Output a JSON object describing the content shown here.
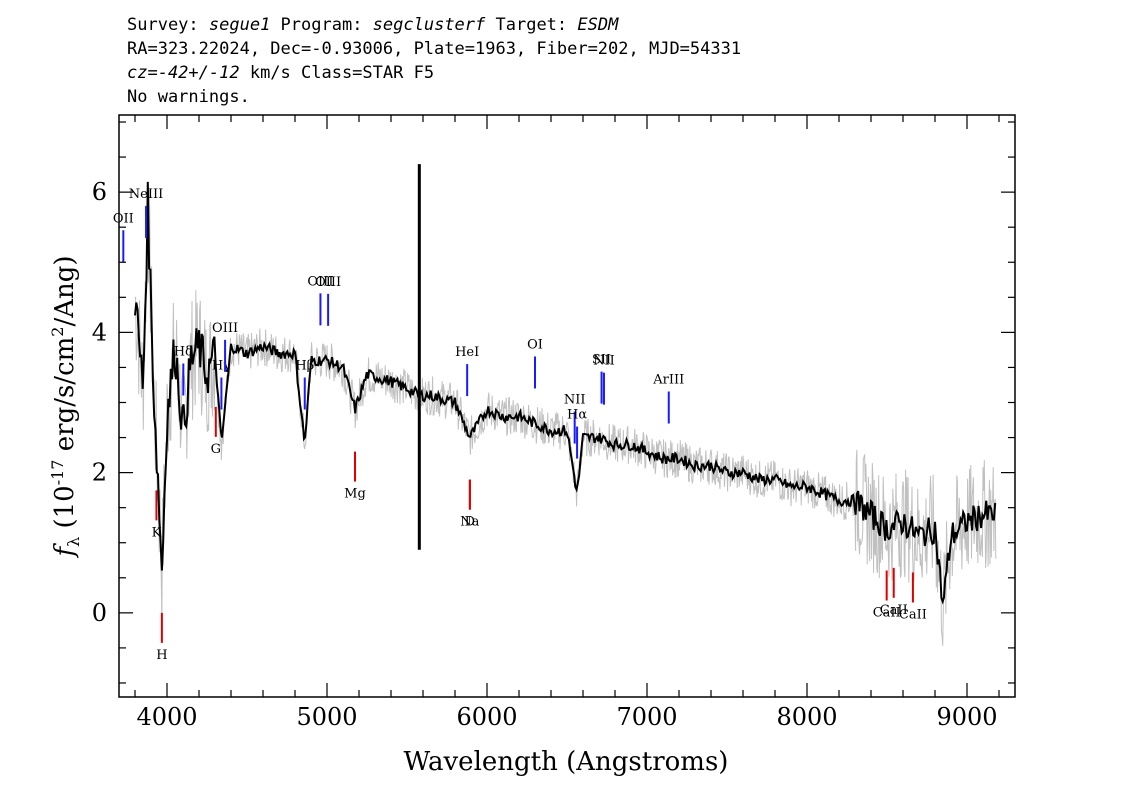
{
  "header": {
    "line1": {
      "survey_label": "Survey: ",
      "survey": "segue1",
      "program_label": " Program: ",
      "program": "segclusterf",
      "target_label": " Target: ",
      "target": "ESDM"
    },
    "line2": "RA=323.22024, Dec=-0.93006, Plate=1963, Fiber=202, MJD=54331",
    "line3": {
      "cz": "cz=-42+/-12",
      "rest": " km/s Class=STAR F5"
    },
    "line4": "No warnings."
  },
  "chart_data": {
    "type": "line",
    "xlabel": "Wavelength (Angstroms)",
    "ylabel": "f_λ (10^-17 erg/s/cm^2/Ang)",
    "xlim": [
      3700,
      9300
    ],
    "ylim": [
      -1.2,
      7.1
    ],
    "x_ticks": [
      4000,
      5000,
      6000,
      7000,
      8000,
      9000
    ],
    "y_ticks": [
      0,
      2,
      4,
      6
    ],
    "series": [
      {
        "role": "smoothed flux",
        "color": "#000000",
        "points": [
          [
            3800,
            4.5
          ],
          [
            3850,
            3.2
          ],
          [
            3880,
            5.8
          ],
          [
            3920,
            3.0
          ],
          [
            3950,
            1.6
          ],
          [
            3968,
            0.6
          ],
          [
            4000,
            2.8
          ],
          [
            4050,
            3.8
          ],
          [
            4102,
            2.6
          ],
          [
            4150,
            3.6
          ],
          [
            4200,
            3.8
          ],
          [
            4250,
            3.4
          ],
          [
            4300,
            3.7
          ],
          [
            4340,
            2.4
          ],
          [
            4400,
            3.8
          ],
          [
            4500,
            3.7
          ],
          [
            4600,
            3.8
          ],
          [
            4700,
            3.7
          ],
          [
            4800,
            3.7
          ],
          [
            4861,
            2.4
          ],
          [
            4900,
            3.6
          ],
          [
            5000,
            3.6
          ],
          [
            5100,
            3.5
          ],
          [
            5175,
            2.9
          ],
          [
            5250,
            3.4
          ],
          [
            5400,
            3.3
          ],
          [
            5500,
            3.2
          ],
          [
            5577,
            3.1
          ],
          [
            5650,
            3.1
          ],
          [
            5800,
            3.0
          ],
          [
            5893,
            2.5
          ],
          [
            6000,
            2.9
          ],
          [
            6100,
            2.8
          ],
          [
            6200,
            2.8
          ],
          [
            6300,
            2.7
          ],
          [
            6400,
            2.6
          ],
          [
            6500,
            2.6
          ],
          [
            6563,
            1.7
          ],
          [
            6600,
            2.5
          ],
          [
            6700,
            2.5
          ],
          [
            6800,
            2.4
          ],
          [
            6900,
            2.4
          ],
          [
            7000,
            2.3
          ],
          [
            7100,
            2.2
          ],
          [
            7200,
            2.2
          ],
          [
            7300,
            2.1
          ],
          [
            7400,
            2.1
          ],
          [
            7500,
            2.0
          ],
          [
            7600,
            2.0
          ],
          [
            7700,
            1.9
          ],
          [
            7800,
            1.9
          ],
          [
            7900,
            1.8
          ],
          [
            8000,
            1.8
          ],
          [
            8100,
            1.7
          ],
          [
            8200,
            1.6
          ],
          [
            8300,
            1.6
          ],
          [
            8400,
            1.4
          ],
          [
            8500,
            1.2
          ],
          [
            8600,
            1.3
          ],
          [
            8700,
            1.1
          ],
          [
            8800,
            1.2
          ],
          [
            8850,
            0.1
          ],
          [
            8900,
            1.1
          ],
          [
            9000,
            1.3
          ],
          [
            9100,
            1.4
          ],
          [
            9180,
            1.4
          ]
        ]
      },
      {
        "role": "sky line spike",
        "color": "#000000",
        "points": [
          [
            5577,
            0.9
          ],
          [
            5577,
            6.4
          ]
        ]
      }
    ],
    "emission_lines": [
      {
        "label": "OII",
        "wavelength": 3727,
        "color": "#1a1aff"
      },
      {
        "label": "NeIII",
        "wavelength": 3869,
        "color": "#1a1aff"
      },
      {
        "label": "Hδ",
        "wavelength": 4102,
        "color": "#1a1aff"
      },
      {
        "label": "Hγ",
        "wavelength": 4340,
        "color": "#1a1aff"
      },
      {
        "label": "OIII",
        "wavelength": 4363,
        "color": "#1a1aff"
      },
      {
        "label": "Hβ",
        "wavelength": 4861,
        "color": "#1a1aff"
      },
      {
        "label": "OIII",
        "wavelength": 4959,
        "color": "#1a1aff"
      },
      {
        "label": "OIII",
        "wavelength": 5007,
        "color": "#1a1aff"
      },
      {
        "label": "HeI",
        "wavelength": 5876,
        "color": "#1a1aff"
      },
      {
        "label": "OI",
        "wavelength": 6300,
        "color": "#1a1aff"
      },
      {
        "label": "NII",
        "wavelength": 6548,
        "color": "#1a1aff"
      },
      {
        "label": "Hα",
        "wavelength": 6563,
        "color": "#1a1aff"
      },
      {
        "label": "SII",
        "wavelength": 6716,
        "color": "#1a1aff"
      },
      {
        "label": "NII",
        "wavelength": 6731,
        "color": "#1a1aff"
      },
      {
        "label": "ArIII",
        "wavelength": 7136,
        "color": "#1a1aff"
      }
    ],
    "absorption_lines": [
      {
        "label": "K",
        "wavelength": 3934,
        "color": "#e00000"
      },
      {
        "label": "H",
        "wavelength": 3968,
        "color": "#e00000"
      },
      {
        "label": "G",
        "wavelength": 4305,
        "color": "#e00000"
      },
      {
        "label": "Mg",
        "wavelength": 5175,
        "color": "#e00000"
      },
      {
        "label": "Na",
        "wavelength": 5893,
        "color": "#e00000"
      },
      {
        "label": "D",
        "wavelength": 5893,
        "color": "#e00000"
      },
      {
        "label": "CaII",
        "wavelength": 8498,
        "color": "#e00000"
      },
      {
        "label": "CaII",
        "wavelength": 8542,
        "color": "#e00000"
      },
      {
        "label": "CaII",
        "wavelength": 8662,
        "color": "#e00000"
      }
    ],
    "colors": {
      "flux": "#000000",
      "raw_flux": "#c0c0c0",
      "emission": "#1a1aff",
      "absorption": "#e00000"
    }
  }
}
